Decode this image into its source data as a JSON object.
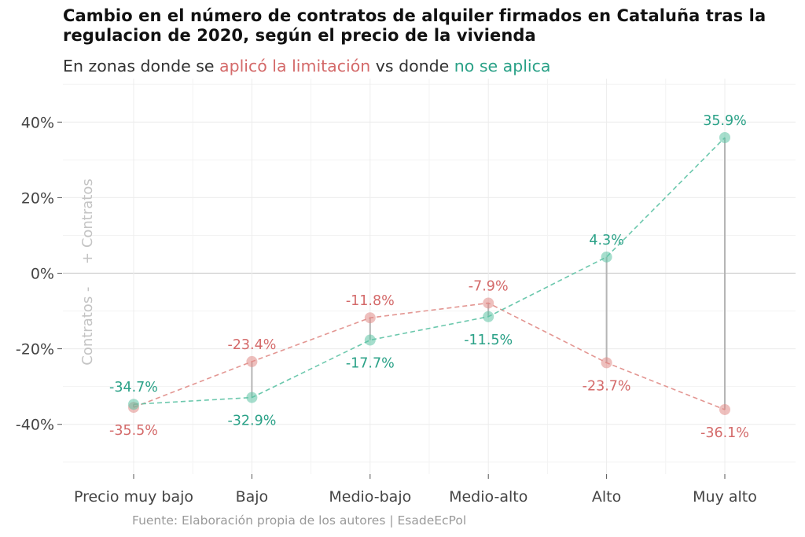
{
  "chart_data": {
    "type": "dumbbell",
    "title": "Cambio en el número de contratos de alquiler firmados en Cataluña tras la regulacion de 2020, según el precio de la vivienda",
    "subtitle": {
      "prefix": "En zonas donde se ",
      "highlight_a": "aplicó la limitación",
      "middle": " vs donde ",
      "highlight_b": "no se aplica"
    },
    "categories": [
      "Precio muy bajo",
      "Bajo",
      "Medio-bajo",
      "Medio-alto",
      "Alto",
      "Muy alto"
    ],
    "series": [
      {
        "name": "aplicó la limitación",
        "color": "#e08b86",
        "label_color": "#d46a6a",
        "values": [
          -35.5,
          -23.4,
          -11.8,
          -7.9,
          -23.7,
          -36.1
        ],
        "labels": [
          "-35.5%",
          "-23.4%",
          "-11.8%",
          "-7.9%",
          "-23.7%",
          "-36.1%"
        ]
      },
      {
        "name": "no se aplica",
        "color": "#5cc2a4",
        "label_color": "#2aa187",
        "values": [
          -34.7,
          -32.9,
          -17.7,
          -11.5,
          4.3,
          35.9
        ],
        "labels": [
          "-34.7%",
          "-32.9%",
          "-17.7%",
          "-11.5%",
          "4.3%",
          "35.9%"
        ]
      }
    ],
    "yticks": [
      40,
      20,
      0,
      -20,
      -40
    ],
    "ytick_labels": [
      "40%",
      "20%",
      "0%",
      "-20%",
      "-40%"
    ],
    "ylim": [
      -52,
      50
    ],
    "ylabel": "Contratos -     + Contratos",
    "grid": true,
    "caption": "Fuente: Elaboración propia de los autores | EsadeEcPol"
  }
}
